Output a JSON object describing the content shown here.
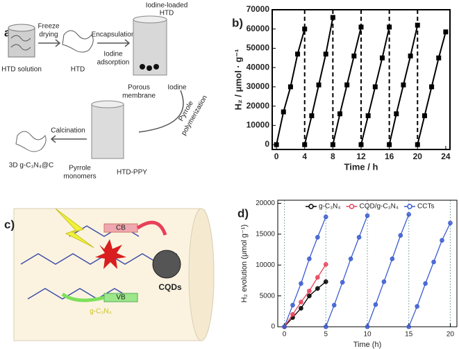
{
  "panel_a": {
    "label": "a)",
    "htd_solution": "HTD solution",
    "freeze_drying": [
      "Freeze",
      "drying"
    ],
    "htd": "HTD",
    "encapsulation": "Encapsulation",
    "iodine_adsorption": [
      "Iodine",
      "adsorption"
    ],
    "iodine_loaded_htd": [
      "Iodine-loaded",
      "HTD"
    ],
    "porous_membrane": [
      "Porous",
      "membrane"
    ],
    "iodine": "Iodine",
    "pyrrole_polymerization": [
      "Pyrrole",
      "polymerization"
    ],
    "htd_ppy": "HTD-PPY",
    "pyrrole_monomers": [
      "Pyrrole",
      "monomers"
    ],
    "calcination": "Calcination",
    "product": "3D g-C₃N₄@C"
  },
  "panel_c": {
    "label": "c)",
    "cb": "CB",
    "vb": "VB",
    "cqds": "CQDs",
    "material": "g-C₃N₄"
  },
  "chart_data": [
    {
      "type": "line",
      "panel": "b)",
      "xlabel": "Time / h",
      "ylabel": "H₂ / μmol · g⁻¹",
      "xlim": [
        -0.6,
        24.6
      ],
      "ylim": [
        -2500,
        70000
      ],
      "xticks": [
        0,
        4,
        8,
        12,
        16,
        20,
        24
      ],
      "yticks": [
        0,
        10000,
        20000,
        30000,
        40000,
        50000,
        60000,
        70000
      ],
      "vlines": [
        4,
        8,
        12,
        16,
        20
      ],
      "marker": "square",
      "series": [
        {
          "color": "#000000",
          "x": [
            0,
            1,
            2,
            3,
            4,
            null,
            4,
            5,
            6,
            7,
            8,
            null,
            8,
            9,
            10,
            11,
            12,
            null,
            12,
            13,
            14,
            15,
            16,
            null,
            16,
            17,
            18,
            19,
            20,
            null,
            20,
            21,
            22,
            23,
            24
          ],
          "values": [
            0,
            17000,
            30000,
            47000,
            60000,
            null,
            0,
            15000,
            31000,
            47000,
            66000,
            null,
            0,
            16000,
            31000,
            46000,
            61000,
            null,
            0,
            15000,
            30000,
            45000,
            61000,
            null,
            0,
            16000,
            31000,
            46000,
            62000,
            null,
            0,
            15000,
            30000,
            45000,
            58500
          ]
        }
      ]
    },
    {
      "type": "line",
      "panel": "d)",
      "xlabel": "Time (h)",
      "ylabel": "H₂ evolution (μmol g⁻¹)",
      "xlim": [
        -0.8,
        20.8
      ],
      "ylim": [
        0,
        20500
      ],
      "xticks": [
        0,
        5,
        10,
        15,
        20
      ],
      "yticks": [
        0,
        5000,
        10000,
        15000,
        20000
      ],
      "vlines": [
        0,
        5,
        10,
        15,
        20
      ],
      "marker": "circle",
      "legend": "top",
      "series": [
        {
          "name": "g-C₃N₄",
          "color": "#000000",
          "x": [
            0,
            1,
            2,
            3,
            4,
            5
          ],
          "values": [
            0,
            1500,
            3000,
            5000,
            6200,
            7300
          ]
        },
        {
          "name": "CQD/g-C₃N₄",
          "color": "#e8405a",
          "x": [
            0,
            1,
            2,
            3,
            4,
            5
          ],
          "values": [
            0,
            2000,
            4000,
            5800,
            8000,
            10100
          ]
        },
        {
          "name": "CCTs",
          "color": "#3a5bd0",
          "x": [
            0,
            1,
            2,
            3,
            4,
            5,
            null,
            5,
            6,
            7,
            8,
            9,
            10,
            null,
            10,
            11,
            12,
            13,
            14,
            15,
            null,
            15,
            16,
            17,
            18,
            19,
            20
          ],
          "values": [
            0,
            3500,
            7000,
            11000,
            14500,
            17800,
            null,
            0,
            3500,
            7200,
            11000,
            14500,
            18000,
            null,
            0,
            3600,
            7300,
            11000,
            14800,
            18200,
            null,
            0,
            3300,
            7000,
            10500,
            14000,
            16800
          ]
        }
      ]
    }
  ]
}
